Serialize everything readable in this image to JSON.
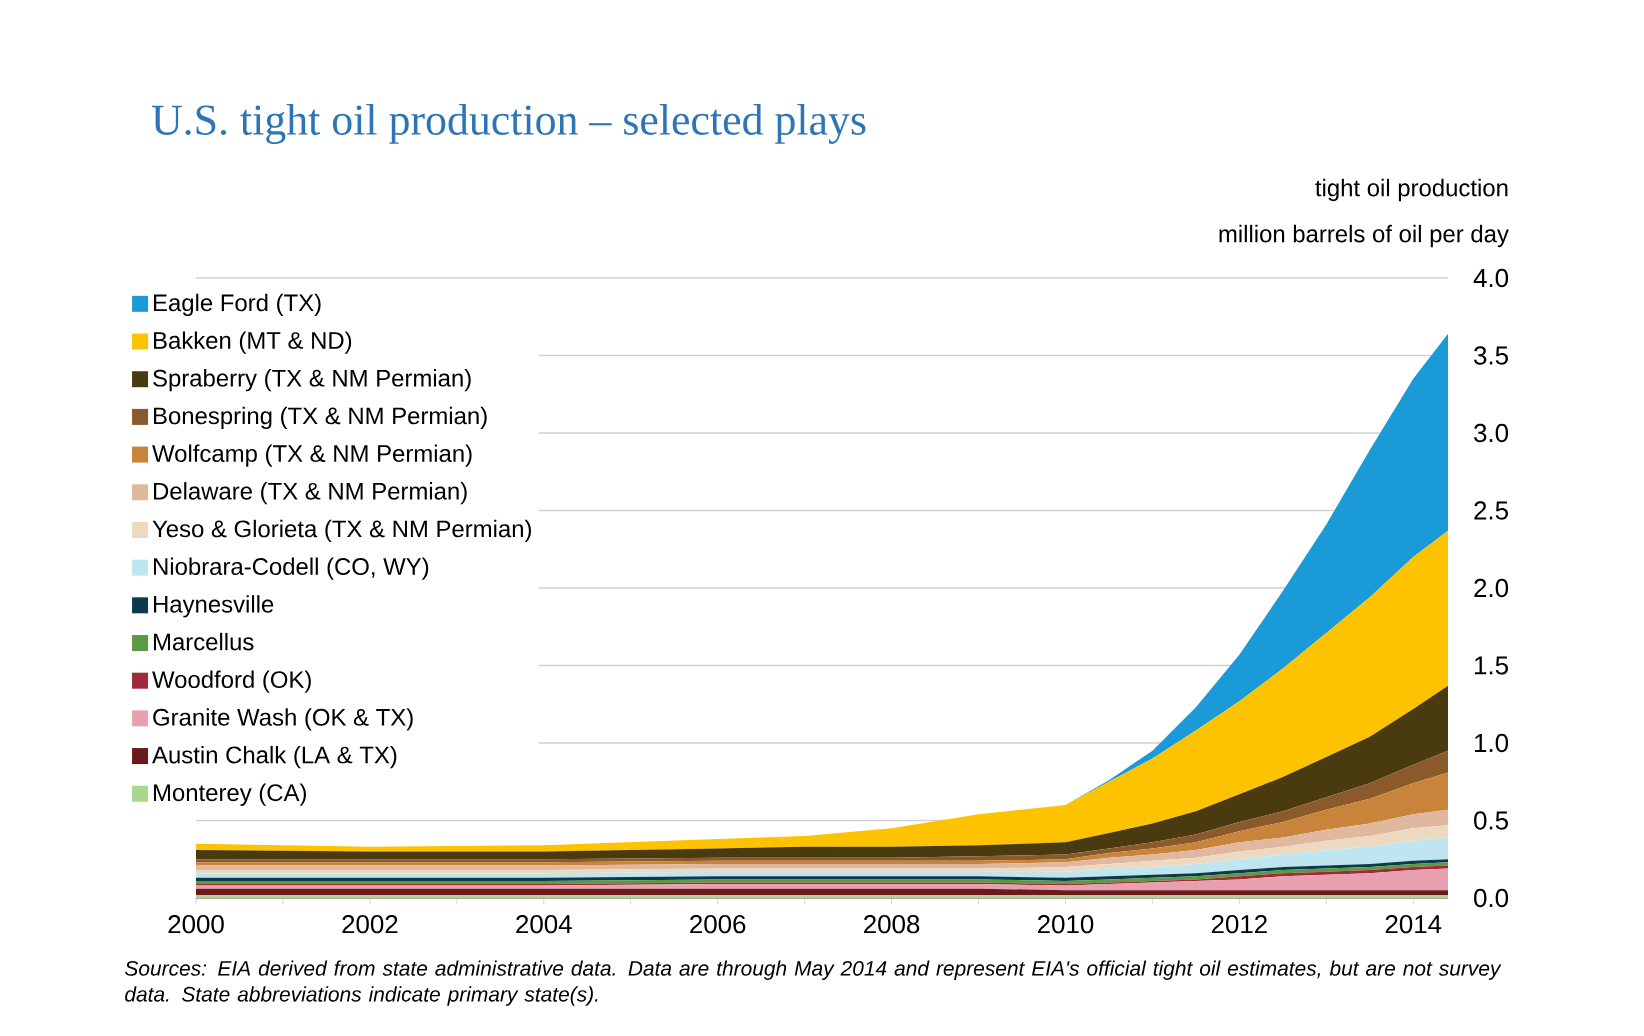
{
  "chart_data": {
    "type": "area",
    "stacked": true,
    "title": "U.S. tight oil production – selected plays",
    "ylabel": "million barrels of oil per day",
    "annotations": [
      "tight oil production",
      "Sources: EIA derived from state administrative data. Data are through May 2014 and represent EIA's official tight oil estimates, but are not survey data. State abbreviations indicate primary state(s)."
    ],
    "x": [
      2000,
      2002,
      2004,
      2006,
      2007,
      2008,
      2009,
      2010,
      2010.5,
      2011,
      2011.5,
      2012,
      2012.5,
      2013,
      2013.5,
      2014,
      2014.4
    ],
    "series": [
      {
        "name": "Monterey (CA)",
        "color": "#a8d890",
        "values": [
          0.02,
          0.02,
          0.02,
          0.02,
          0.02,
          0.02,
          0.02,
          0.02,
          0.02,
          0.02,
          0.02,
          0.02,
          0.02,
          0.02,
          0.02,
          0.02,
          0.02
        ]
      },
      {
        "name": "Austin Chalk (LA & TX)",
        "color": "#6a1a1a",
        "values": [
          0.04,
          0.04,
          0.04,
          0.04,
          0.04,
          0.04,
          0.04,
          0.03,
          0.03,
          0.03,
          0.03,
          0.03,
          0.03,
          0.03,
          0.03,
          0.03,
          0.03
        ]
      },
      {
        "name": "Granite Wash (OK & TX)",
        "color": "#e8a0b0",
        "values": [
          0.02,
          0.02,
          0.02,
          0.03,
          0.03,
          0.03,
          0.03,
          0.03,
          0.04,
          0.05,
          0.06,
          0.07,
          0.09,
          0.1,
          0.11,
          0.13,
          0.14
        ]
      },
      {
        "name": "Woodford (OK)",
        "color": "#9e2a3a",
        "values": [
          0.01,
          0.01,
          0.01,
          0.01,
          0.01,
          0.01,
          0.01,
          0.01,
          0.01,
          0.01,
          0.01,
          0.02,
          0.02,
          0.02,
          0.02,
          0.02,
          0.02
        ]
      },
      {
        "name": "Marcellus",
        "color": "#5a9a40",
        "values": [
          0.02,
          0.02,
          0.02,
          0.02,
          0.02,
          0.02,
          0.02,
          0.02,
          0.02,
          0.02,
          0.02,
          0.02,
          0.02,
          0.02,
          0.02,
          0.02,
          0.02
        ]
      },
      {
        "name": "Haynesville",
        "color": "#0b3a4a",
        "values": [
          0.02,
          0.02,
          0.02,
          0.02,
          0.02,
          0.02,
          0.02,
          0.02,
          0.02,
          0.02,
          0.02,
          0.02,
          0.02,
          0.02,
          0.02,
          0.02,
          0.02
        ]
      },
      {
        "name": "Niobrara-Codell (CO, WY)",
        "color": "#bfe6f0",
        "values": [
          0.03,
          0.03,
          0.03,
          0.03,
          0.03,
          0.03,
          0.03,
          0.04,
          0.05,
          0.05,
          0.06,
          0.07,
          0.08,
          0.1,
          0.11,
          0.13,
          0.14
        ]
      },
      {
        "name": "Yeso & Glorieta (TX & NM Permian)",
        "color": "#ecd9c0",
        "values": [
          0.02,
          0.02,
          0.02,
          0.02,
          0.02,
          0.02,
          0.02,
          0.03,
          0.03,
          0.04,
          0.04,
          0.05,
          0.05,
          0.06,
          0.07,
          0.08,
          0.08
        ]
      },
      {
        "name": "Delaware (TX & NM Permian)",
        "color": "#e0b8a0",
        "values": [
          0.03,
          0.03,
          0.03,
          0.03,
          0.03,
          0.03,
          0.03,
          0.03,
          0.04,
          0.04,
          0.05,
          0.06,
          0.06,
          0.07,
          0.08,
          0.09,
          0.1
        ]
      },
      {
        "name": "Wolfcamp (TX & NM Permian)",
        "color": "#c8843a",
        "values": [
          0.02,
          0.02,
          0.02,
          0.02,
          0.02,
          0.02,
          0.02,
          0.02,
          0.03,
          0.04,
          0.05,
          0.07,
          0.1,
          0.13,
          0.16,
          0.2,
          0.24
        ]
      },
      {
        "name": "Bonespring (TX & NM Permian)",
        "color": "#8b5a2b",
        "values": [
          0.02,
          0.02,
          0.02,
          0.02,
          0.02,
          0.02,
          0.03,
          0.03,
          0.03,
          0.04,
          0.05,
          0.06,
          0.07,
          0.08,
          0.1,
          0.12,
          0.14
        ]
      },
      {
        "name": "Spraberry (TX & NM Permian)",
        "color": "#4a3a10",
        "values": [
          0.06,
          0.05,
          0.05,
          0.06,
          0.07,
          0.07,
          0.07,
          0.08,
          0.1,
          0.12,
          0.15,
          0.18,
          0.22,
          0.26,
          0.3,
          0.36,
          0.42
        ]
      },
      {
        "name": "Bakken (MT & ND)",
        "color": "#fdc300",
        "values": [
          0.04,
          0.03,
          0.04,
          0.06,
          0.07,
          0.12,
          0.2,
          0.24,
          0.33,
          0.42,
          0.52,
          0.6,
          0.7,
          0.8,
          0.9,
          0.98,
          1.0
        ]
      },
      {
        "name": "Eagle Ford (TX)",
        "color": "#1a9ad6",
        "values": [
          0,
          0,
          0,
          0,
          0,
          0,
          0,
          0,
          0.01,
          0.05,
          0.15,
          0.3,
          0.5,
          0.7,
          0.95,
          1.15,
          1.27
        ]
      }
    ],
    "xlim": [
      2000,
      2014.4
    ],
    "ylim": [
      0,
      4
    ],
    "xticks": [
      2000,
      {
        "value": 2001,
        "label": null
      },
      2002,
      {
        "value": 2003,
        "label": null
      },
      2004,
      {
        "value": 2005,
        "label": null
      },
      2006,
      {
        "value": 2007,
        "label": null
      },
      2008,
      {
        "value": 2009,
        "label": null
      },
      2010,
      {
        "value": 2011,
        "label": null
      },
      2012,
      {
        "value": 2013,
        "label": null
      },
      2014
    ],
    "yticks": [
      {
        "value": 0,
        "label": "0.0"
      },
      {
        "value": 0.5,
        "label": "0.5"
      },
      {
        "value": 1,
        "label": "1.0"
      },
      {
        "value": 1.5,
        "label": "1.5"
      },
      {
        "value": 2,
        "label": "2.0"
      },
      {
        "value": 2.5,
        "label": "2.5"
      },
      {
        "value": 3,
        "label": "3.0"
      },
      {
        "value": 3.5,
        "label": "3.5"
      },
      {
        "value": 4,
        "label": "4.0"
      }
    ],
    "grid": "y",
    "legend": "top left"
  }
}
